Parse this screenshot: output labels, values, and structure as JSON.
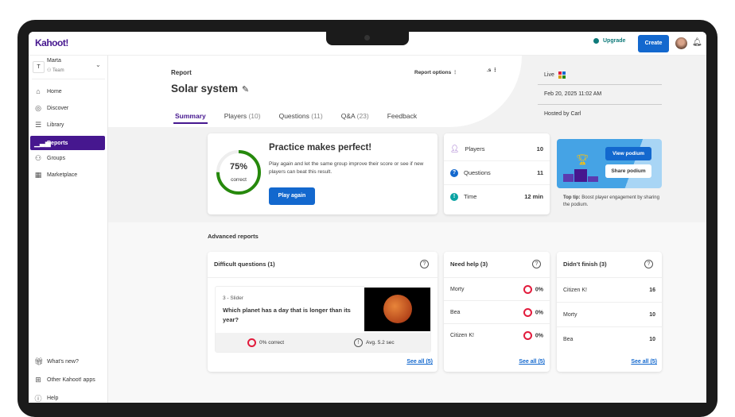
{
  "header": {
    "logo": "Kahoot!",
    "upgrade": "Upgrade",
    "create": "Create"
  },
  "team": {
    "initial": "T",
    "name": "Marta",
    "type": "Team"
  },
  "sidebar": {
    "items": [
      {
        "label": "Home",
        "icon": "home-icon"
      },
      {
        "label": "Discover",
        "icon": "compass-icon"
      },
      {
        "label": "Library",
        "icon": "list-icon"
      },
      {
        "label": "Reports",
        "icon": "bar-chart-icon",
        "active": true
      },
      {
        "label": "Groups",
        "icon": "groups-icon"
      },
      {
        "label": "Marketplace",
        "icon": "store-icon"
      }
    ],
    "bottom": [
      {
        "label": "What's new?",
        "icon": "gift-icon"
      },
      {
        "label": "Other Kahoot! apps",
        "icon": "apps-icon"
      },
      {
        "label": "Help",
        "icon": "help-icon"
      }
    ]
  },
  "report": {
    "label": "Report",
    "title": "Solar system",
    "options": "Report options",
    "clipped": ".s",
    "tabs": [
      {
        "label": "Summary",
        "count": ""
      },
      {
        "label": "Players",
        "count": "(10)"
      },
      {
        "label": "Questions",
        "count": "(11)"
      },
      {
        "label": "Q&A",
        "count": "(23)"
      },
      {
        "label": "Feedback",
        "count": ""
      }
    ]
  },
  "info": {
    "mode": "Live",
    "date": "Feb 20, 2025 11:02 AM",
    "host": "Hosted by Carl"
  },
  "practice": {
    "percent": "75%",
    "percent_value": 75,
    "correct": "correct",
    "title": "Practice makes perfect!",
    "text": "Play again and let the same group improve their score or see if new players can beat this result.",
    "button": "Play again"
  },
  "stats": [
    {
      "label": "Players",
      "value": "10"
    },
    {
      "label": "Questions",
      "value": "11"
    },
    {
      "label": "Time",
      "value": "12 min"
    }
  ],
  "podium": {
    "view": "View podium",
    "share": "Share podium",
    "tip_bold": "Top tip:",
    "tip": "Boost player engagement by sharing the podium."
  },
  "advanced": {
    "title": "Advanced reports",
    "difficult": {
      "title": "Difficult questions (1)",
      "qtype": "3 - Slider",
      "question": "Which planet has a day that is longer than its year?",
      "correct": "0% correct",
      "avg": "Avg. 5.2 sec",
      "see_all": "See all (5)"
    },
    "need_help": {
      "title": "Need help (3)",
      "rows": [
        {
          "name": "Morty",
          "value": "0%"
        },
        {
          "name": "Bea",
          "value": "0%"
        },
        {
          "name": "Citizen K!",
          "value": "0%"
        }
      ],
      "see_all": "See all (5)"
    },
    "didnt_finish": {
      "title": "Didn’t finish (3)",
      "rows": [
        {
          "name": "Citizen K!",
          "value": "16"
        },
        {
          "name": "Morty",
          "value": "10"
        },
        {
          "name": "Bea",
          "value": "10"
        }
      ],
      "see_all": "See all (5)"
    }
  },
  "colors": {
    "brand": "#46178f",
    "primary": "#1368ce",
    "success": "#26890c",
    "danger": "#e21b3c"
  }
}
